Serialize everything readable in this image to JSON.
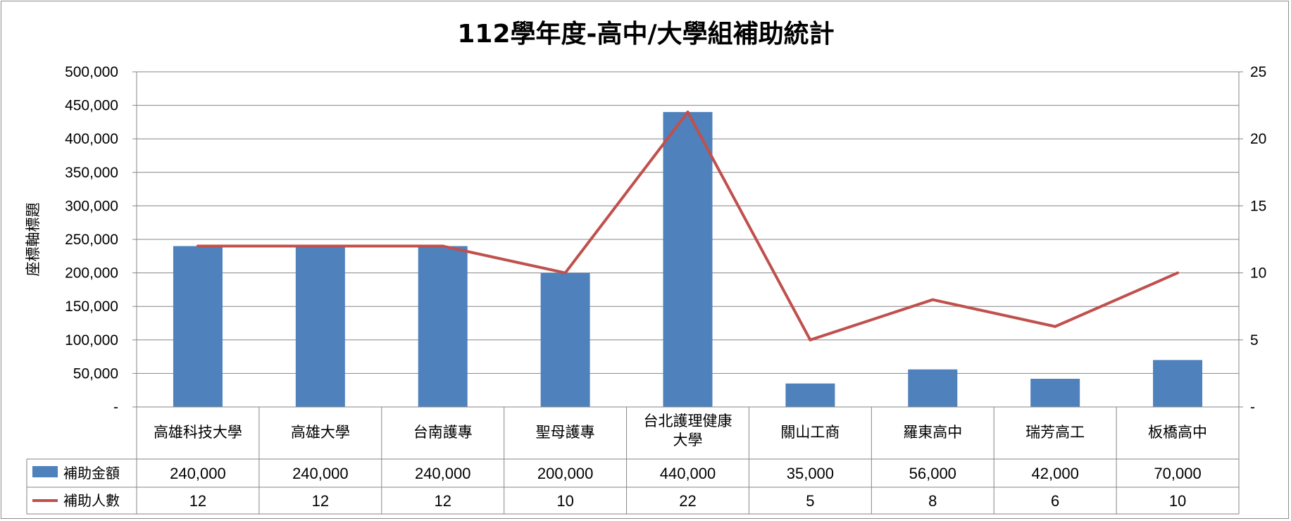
{
  "chart_data": {
    "type": "bar",
    "title": "112學年度-高中/大學組補助統計",
    "ylabel": "座標軸標題",
    "categories": [
      "高雄科技大學",
      "高雄大學",
      "台南護專",
      "聖母護專",
      "台北護理健康大學",
      "關山工商",
      "羅東高中",
      "瑞芳高工",
      "板橋高中"
    ],
    "series": [
      {
        "name": "補助金額",
        "type": "bar",
        "axis": "left",
        "color": "#4f81bd",
        "values": [
          240000,
          240000,
          240000,
          200000,
          440000,
          35000,
          56000,
          42000,
          70000
        ],
        "labels": [
          "240,000",
          "240,000",
          "240,000",
          "200,000",
          "440,000",
          "35,000",
          "56,000",
          "42,000",
          "70,000"
        ]
      },
      {
        "name": "補助人數",
        "type": "line",
        "axis": "right",
        "color": "#c0504d",
        "values": [
          12,
          12,
          12,
          10,
          22,
          5,
          8,
          6,
          10
        ],
        "labels": [
          "12",
          "12",
          "12",
          "10",
          "22",
          "5",
          "8",
          "6",
          "10"
        ]
      }
    ],
    "ylim": [
      0,
      500000
    ],
    "y2lim": [
      0,
      25
    ],
    "yticks": [
      "-",
      "50,000",
      "100,000",
      "150,000",
      "200,000",
      "250,000",
      "300,000",
      "350,000",
      "400,000",
      "450,000",
      "500,000"
    ],
    "y2ticks": [
      "-",
      "5",
      "10",
      "15",
      "20",
      "25"
    ],
    "grid": true,
    "legend": "data-table"
  }
}
